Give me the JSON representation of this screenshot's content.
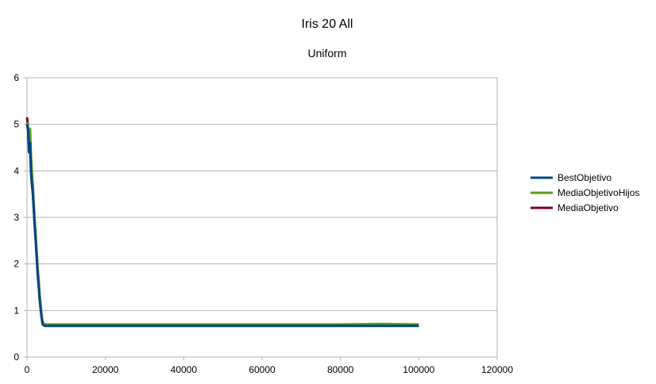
{
  "chart_data": {
    "type": "line",
    "title": "Iris 20 All",
    "subtitle": "Uniform",
    "xlabel": "",
    "ylabel": "",
    "xlim": [
      0,
      120000
    ],
    "ylim": [
      0,
      6
    ],
    "x_ticks": [
      0,
      20000,
      40000,
      60000,
      80000,
      100000,
      120000
    ],
    "y_ticks": [
      0,
      1,
      2,
      3,
      4,
      5,
      6
    ],
    "grid": "horizontal",
    "legend_position": "right",
    "series": [
      {
        "name": "BestObjetivo",
        "color": "#004586",
        "points": [
          [
            0,
            5.0
          ],
          [
            300,
            4.85
          ],
          [
            500,
            4.4
          ],
          [
            800,
            4.6
          ],
          [
            1000,
            4.0
          ],
          [
            1200,
            3.75
          ],
          [
            1500,
            3.5
          ],
          [
            1700,
            3.2
          ],
          [
            2000,
            2.75
          ],
          [
            2200,
            2.5
          ],
          [
            2500,
            2.1
          ],
          [
            2700,
            1.8
          ],
          [
            3000,
            1.5
          ],
          [
            3200,
            1.25
          ],
          [
            3500,
            1.0
          ],
          [
            3700,
            0.85
          ],
          [
            4000,
            0.7
          ],
          [
            4500,
            0.67
          ],
          [
            10000,
            0.67
          ],
          [
            20000,
            0.67
          ],
          [
            40000,
            0.67
          ],
          [
            60000,
            0.67
          ],
          [
            80000,
            0.67
          ],
          [
            100000,
            0.67
          ]
        ]
      },
      {
        "name": "MediaObjetivoHijos",
        "color": "#579d1c",
        "points": [
          [
            0,
            5.05
          ],
          [
            300,
            4.9
          ],
          [
            500,
            4.6
          ],
          [
            800,
            4.9
          ],
          [
            1000,
            4.4
          ],
          [
            1200,
            4.05
          ],
          [
            1500,
            3.7
          ],
          [
            1700,
            3.35
          ],
          [
            2000,
            2.9
          ],
          [
            2200,
            2.65
          ],
          [
            2500,
            2.25
          ],
          [
            2700,
            1.95
          ],
          [
            3000,
            1.65
          ],
          [
            3200,
            1.35
          ],
          [
            3500,
            1.1
          ],
          [
            3700,
            0.9
          ],
          [
            4000,
            0.75
          ],
          [
            4500,
            0.7
          ],
          [
            10000,
            0.7
          ],
          [
            20000,
            0.7
          ],
          [
            30000,
            0.7
          ],
          [
            40000,
            0.7
          ],
          [
            50000,
            0.7
          ],
          [
            60000,
            0.7
          ],
          [
            70000,
            0.7
          ],
          [
            80000,
            0.7
          ],
          [
            90000,
            0.71
          ],
          [
            100000,
            0.7
          ]
        ]
      },
      {
        "name": "MediaObjetivo",
        "color": "#7e0021",
        "points": [
          [
            0,
            5.15
          ],
          [
            200,
            5.0
          ],
          [
            400,
            4.6
          ],
          [
            800,
            4.5
          ],
          [
            1000,
            4.1
          ],
          [
            1500,
            3.5
          ],
          [
            2000,
            2.8
          ],
          [
            2500,
            2.15
          ],
          [
            3000,
            1.55
          ],
          [
            3500,
            1.05
          ],
          [
            4000,
            0.72
          ],
          [
            4500,
            0.68
          ],
          [
            100000,
            0.68
          ]
        ]
      }
    ]
  }
}
